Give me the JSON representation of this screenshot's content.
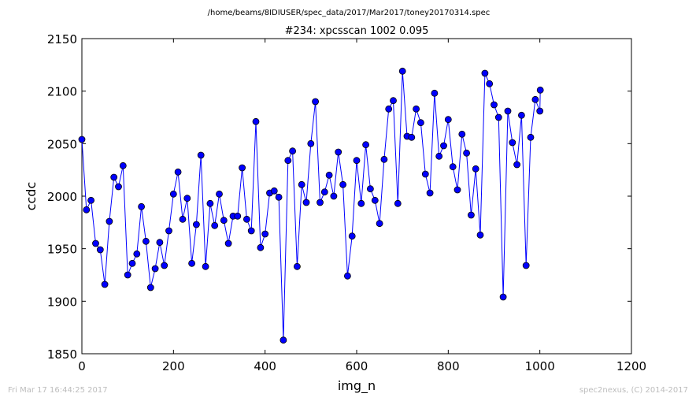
{
  "header": {
    "path": "/home/beams/8IDIUSER/spec_data/2017/Mar2017/toney20170314.spec"
  },
  "footer": {
    "timestamp": "Fri Mar 17 16:44:25 2017",
    "credit": "spec2nexus, (C) 2014-2017"
  },
  "colors": {
    "series": "#0000ff",
    "marker_edge": "#000000"
  },
  "chart_data": {
    "type": "line",
    "title": "#234: xpcsscan 1002 0.095",
    "xlabel": "img_n",
    "ylabel": "ccdc",
    "xlim": [
      0,
      1200
    ],
    "ylim": [
      1850,
      2150
    ],
    "xticks": [
      0,
      200,
      400,
      600,
      800,
      1000,
      1200
    ],
    "yticks": [
      1850,
      1900,
      1950,
      2000,
      2050,
      2100,
      2150
    ],
    "grid": false,
    "legend": "none",
    "series": [
      {
        "marker": "circle",
        "x": [
          0,
          10,
          20,
          30,
          40,
          50,
          60,
          70,
          80,
          90,
          100,
          110,
          120,
          130,
          140,
          150,
          160,
          170,
          180,
          190,
          200,
          210,
          220,
          230,
          240,
          250,
          260,
          270,
          280,
          290,
          300,
          310,
          320,
          330,
          340,
          350,
          360,
          370,
          380,
          390,
          400,
          410,
          420,
          430,
          440,
          450,
          460,
          470,
          480,
          490,
          500,
          510,
          520,
          530,
          540,
          550,
          560,
          570,
          580,
          590,
          600,
          610,
          620,
          630,
          640,
          650,
          660,
          670,
          680,
          690,
          700,
          710,
          720,
          730,
          740,
          750,
          760,
          770,
          780,
          790,
          800,
          810,
          820,
          830,
          840,
          850,
          860,
          870,
          880,
          890,
          900,
          910,
          920,
          930,
          940,
          950,
          960,
          970,
          980,
          990,
          1000,
          1001
        ],
        "y": [
          2054,
          1987,
          1996,
          1955,
          1949,
          1916,
          1976,
          2018,
          2009,
          2029,
          1925,
          1936,
          1945,
          1990,
          1957,
          1913,
          1931,
          1956,
          1934,
          1967,
          2002,
          2023,
          1978,
          1998,
          1936,
          1973,
          2039,
          1933,
          1993,
          1972,
          2002,
          1977,
          1955,
          1981,
          1981,
          2027,
          1978,
          1967,
          2071,
          1951,
          1964,
          2003,
          2005,
          1999,
          1863,
          2034,
          2043,
          1933,
          2011,
          1994,
          2050,
          2090,
          1994,
          2004,
          2020,
          2000,
          2042,
          2011,
          1924,
          1962,
          2034,
          1993,
          2049,
          2007,
          1996,
          1974,
          2035,
          2083,
          2091,
          1993,
          2119,
          2057,
          2056,
          2083,
          2070,
          2021,
          2003,
          2098,
          2038,
          2048,
          2073,
          2028,
          2006,
          2059,
          2041,
          1982,
          2026,
          1963,
          2117,
          2107,
          2087,
          2075,
          1904,
          2081,
          2051,
          2030,
          2077,
          1934,
          2056,
          2092,
          2081,
          2101
        ]
      }
    ]
  }
}
